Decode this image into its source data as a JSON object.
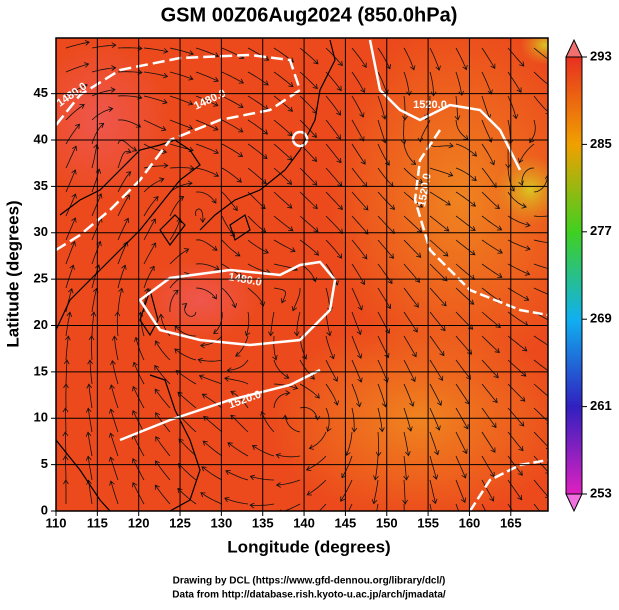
{
  "map": {
    "title": "GSM 00Z06Aug2024 (850.0hPa)",
    "x_label": "Longitude (degrees)",
    "y_label": "Latitude  (degrees)",
    "xlim": [
      110,
      169.5
    ],
    "ylim": [
      0,
      51
    ],
    "xticks": [
      110,
      115,
      120,
      125,
      130,
      135,
      140,
      145,
      150,
      155,
      160,
      165
    ],
    "yticks": [
      0,
      5,
      10,
      15,
      20,
      25,
      30,
      35,
      40,
      45
    ],
    "colorbar": {
      "range": [
        253,
        293
      ],
      "ticks": [
        253,
        261,
        269,
        277,
        285,
        293
      ]
    },
    "contour_labels": [
      "1480.0",
      "1480.0",
      "1520.0",
      "1520.0",
      "1480.0",
      "1520.0"
    ],
    "credits": [
      "Drawing by DCL (https://www.gfd-dennou.org/library/dcl/)",
      "Data from http://database.rish.kyoto-u.ac.jp/arch/jmadata/"
    ]
  }
}
